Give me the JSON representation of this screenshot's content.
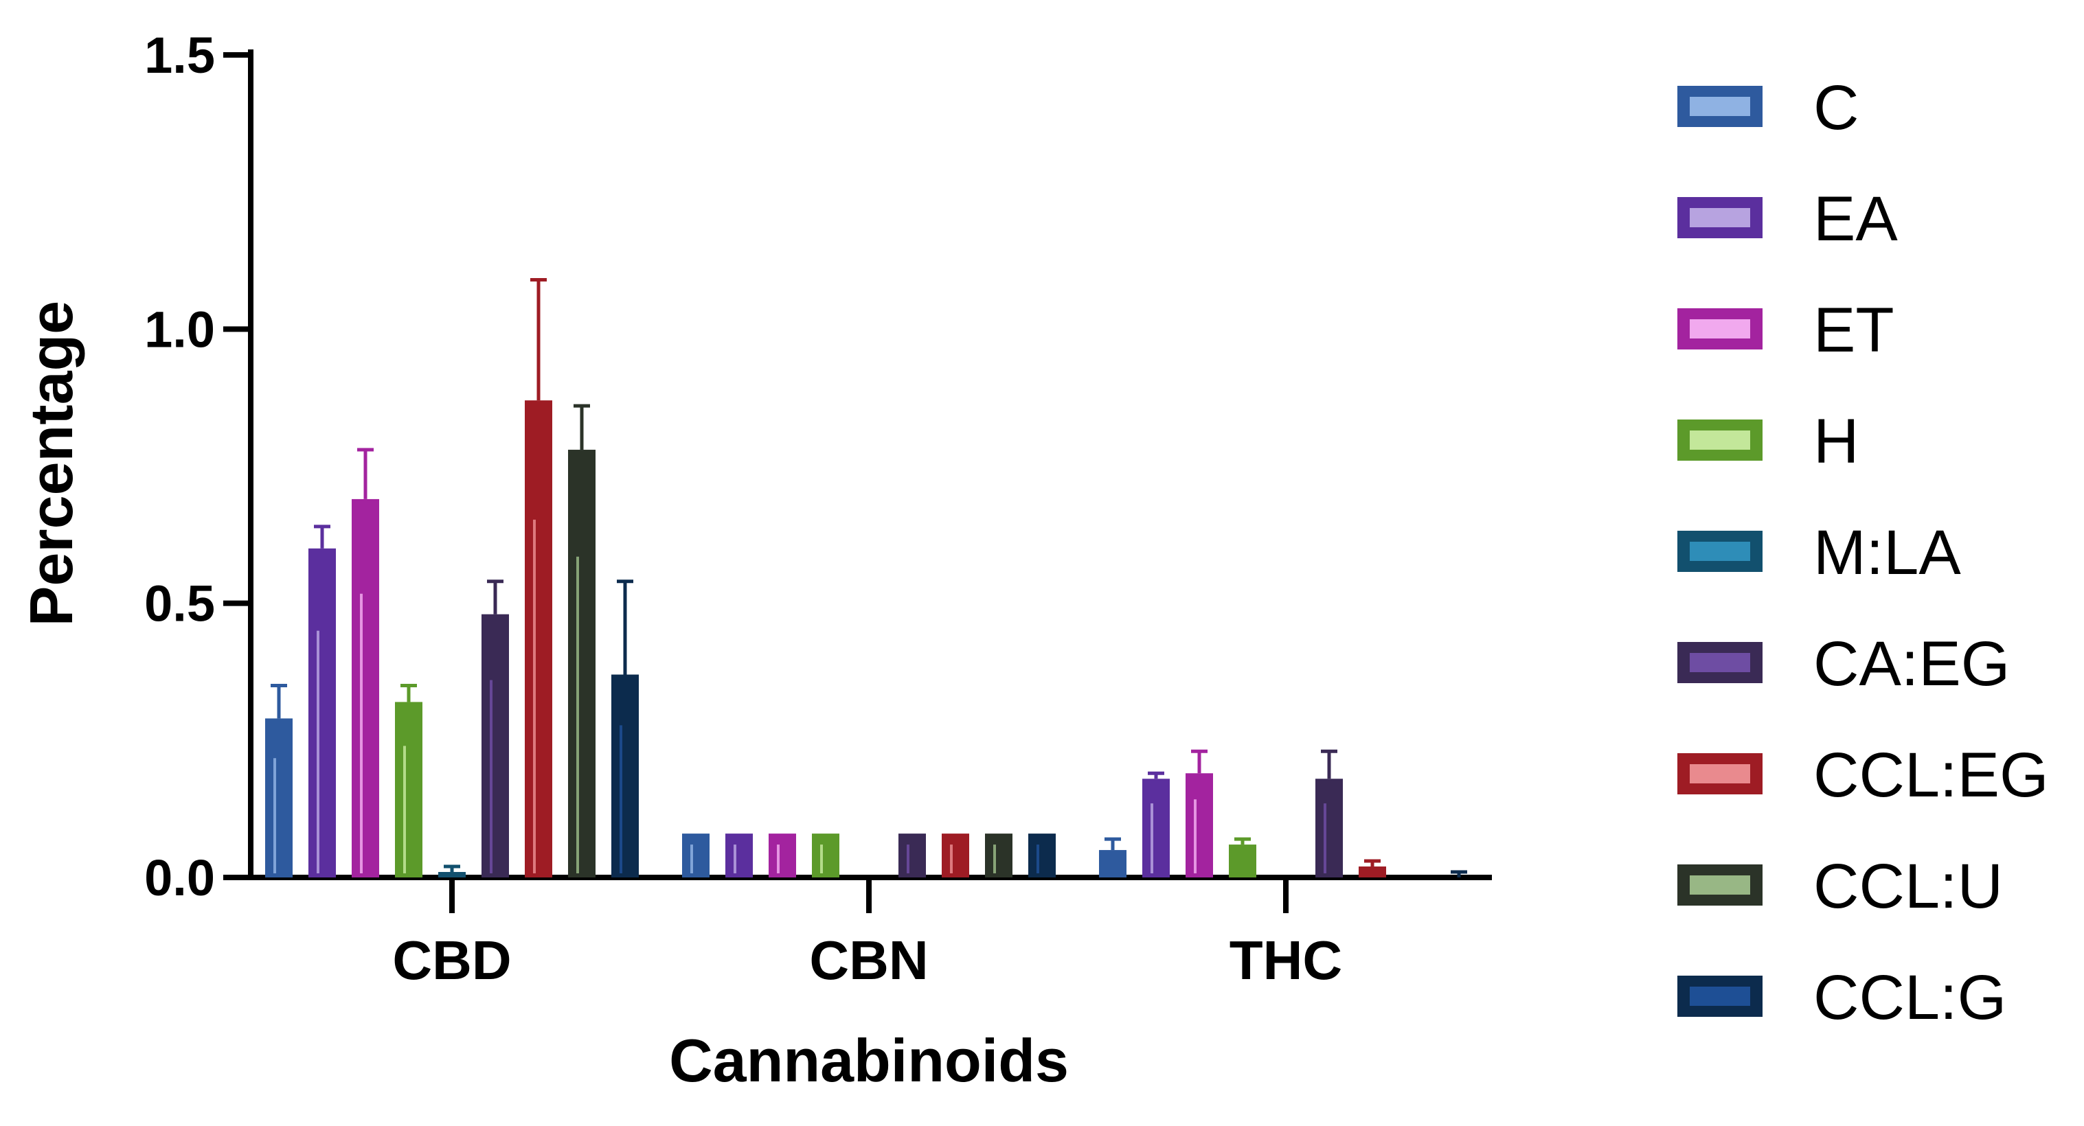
{
  "chart_data": {
    "type": "bar",
    "title": "",
    "xlabel": "Cannabinoids",
    "ylabel": "Percentage",
    "ylim": [
      0,
      1.5
    ],
    "yticks": [
      "0.0",
      "0.5",
      "1.0",
      "1.5"
    ],
    "ytick_values": [
      0,
      0.5,
      1.0,
      1.5
    ],
    "categories": [
      "CBD",
      "CBN",
      "THC"
    ],
    "legend_position": "right",
    "grid": false,
    "series": [
      {
        "name": "C",
        "color": "#2E5A9E",
        "highlight": "#8FB2E3",
        "values": [
          0.29,
          0.08,
          0.05
        ],
        "errors": [
          0.06,
          0.0,
          0.02
        ]
      },
      {
        "name": "EA",
        "color": "#5B2F9E",
        "highlight": "#B7A3E0",
        "values": [
          0.6,
          0.08,
          0.18
        ],
        "errors": [
          0.04,
          0.0,
          0.01
        ]
      },
      {
        "name": "ET",
        "color": "#A3239F",
        "highlight": "#F1A9EE",
        "values": [
          0.69,
          0.08,
          0.19
        ],
        "errors": [
          0.09,
          0.0,
          0.04
        ]
      },
      {
        "name": "H",
        "color": "#5C9A2A",
        "highlight": "#C3E79A",
        "values": [
          0.32,
          0.08,
          0.06
        ],
        "errors": [
          0.03,
          0.0,
          0.01
        ]
      },
      {
        "name": "M:LA",
        "color": "#12506E",
        "highlight": "#2E8DB8",
        "values": [
          0.01,
          0.0,
          0.0
        ],
        "errors": [
          0.01,
          0.0,
          0.0
        ]
      },
      {
        "name": "CA:EG",
        "color": "#3A2A55",
        "highlight": "#6E4DA3",
        "values": [
          0.48,
          0.08,
          0.18
        ],
        "errors": [
          0.06,
          0.0,
          0.05
        ]
      },
      {
        "name": "CCL:EG",
        "color": "#9E1C24",
        "highlight": "#E98A8E",
        "values": [
          0.87,
          0.08,
          0.02
        ],
        "errors": [
          0.22,
          0.0,
          0.01
        ]
      },
      {
        "name": "CCL:U",
        "color": "#2B3328",
        "highlight": "#98B785",
        "values": [
          0.78,
          0.08,
          0.0
        ],
        "errors": [
          0.08,
          0.0,
          0.0
        ]
      },
      {
        "name": "CCL:G",
        "color": "#0C2B4D",
        "highlight": "#1E4F95",
        "values": [
          0.37,
          0.08,
          0.0
        ],
        "errors": [
          0.17,
          0.0,
          0.01
        ]
      }
    ]
  }
}
